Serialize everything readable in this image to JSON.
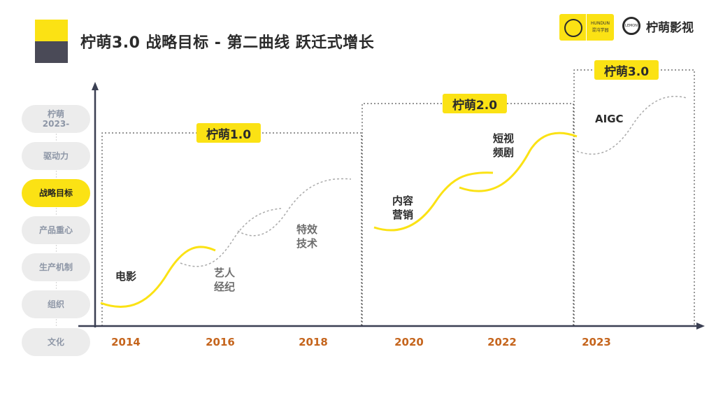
{
  "title": "柠萌3.0  战略目标 - 第二曲线 跃迁式增长",
  "colors": {
    "brand_yellow": "#fbe214",
    "brand_dark": "#4a4a57",
    "axis": "#3a3f52",
    "year": "#c5651d",
    "pill_bg": "#ececec",
    "curve_gray": "#aaaaaa",
    "text_dark": "#2b2b2b",
    "text_gray": "#6e6e6e"
  },
  "logos": {
    "hundun_text": "HUNDUN",
    "hundun_sub": "混沌学园",
    "ningmeng_icon": "LEMON",
    "ningmeng_name": "柠萌影视"
  },
  "sidebar": [
    {
      "label": "柠萌\n2023-",
      "active": false
    },
    {
      "label": "驱动力",
      "active": false
    },
    {
      "label": "战略目标",
      "active": true
    },
    {
      "label": "产品重心",
      "active": false
    },
    {
      "label": "生产机制",
      "active": false
    },
    {
      "label": "组织",
      "active": false
    },
    {
      "label": "文化",
      "active": false
    }
  ],
  "years": [
    "2014",
    "2016",
    "2018",
    "2020",
    "2022",
    "2023"
  ],
  "stages": [
    {
      "label": "柠萌1.0"
    },
    {
      "label": "柠萌2.0"
    },
    {
      "label": "柠萌3.0"
    }
  ],
  "curve_labels": [
    {
      "text": "电影"
    },
    {
      "text": "艺人\n经纪"
    },
    {
      "text": "特效\n技术"
    },
    {
      "text": "内容\n营销"
    },
    {
      "text": "短视\n频剧"
    },
    {
      "text": "AIGC"
    }
  ]
}
